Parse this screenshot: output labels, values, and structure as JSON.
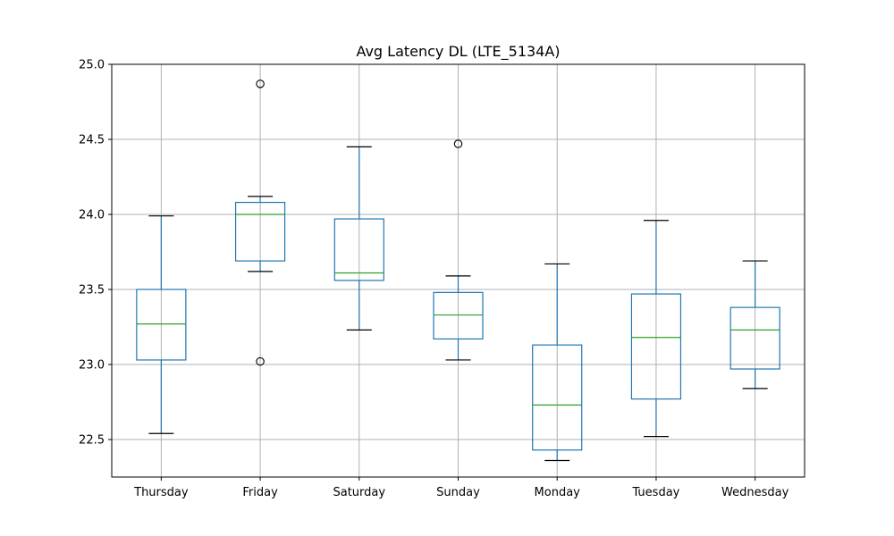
{
  "chart_data": {
    "type": "boxplot",
    "title": "Avg Latency DL (LTE_5134A)",
    "xlabel": "",
    "ylabel": "",
    "categories": [
      "Thursday",
      "Friday",
      "Saturday",
      "Sunday",
      "Monday",
      "Tuesday",
      "Wednesday"
    ],
    "ylim": [
      22.25,
      25.0
    ],
    "yticks": [
      "22.5",
      "23.0",
      "23.5",
      "24.0",
      "24.5",
      "25.0"
    ],
    "ytick_values": [
      22.5,
      23.0,
      23.5,
      24.0,
      24.5,
      25.0
    ],
    "grid": true,
    "legend": "none",
    "boxes": [
      {
        "category": "Thursday",
        "whisker_low": 22.54,
        "q1": 23.03,
        "median": 23.27,
        "q3": 23.5,
        "whisker_high": 23.99,
        "outliers": []
      },
      {
        "category": "Friday",
        "whisker_low": 23.62,
        "q1": 23.69,
        "median": 24.0,
        "q3": 24.08,
        "whisker_high": 24.12,
        "outliers": [
          24.87,
          23.02
        ]
      },
      {
        "category": "Saturday",
        "whisker_low": 23.23,
        "q1": 23.56,
        "median": 23.61,
        "q3": 23.97,
        "whisker_high": 24.45,
        "outliers": []
      },
      {
        "category": "Sunday",
        "whisker_low": 23.03,
        "q1": 23.17,
        "median": 23.33,
        "q3": 23.48,
        "whisker_high": 23.59,
        "outliers": [
          24.47
        ]
      },
      {
        "category": "Monday",
        "whisker_low": 22.36,
        "q1": 22.43,
        "median": 22.73,
        "q3": 23.13,
        "whisker_high": 23.67,
        "outliers": []
      },
      {
        "category": "Tuesday",
        "whisker_low": 22.52,
        "q1": 22.77,
        "median": 23.18,
        "q3": 23.47,
        "whisker_high": 23.96,
        "outliers": []
      },
      {
        "category": "Wednesday",
        "whisker_low": 22.84,
        "q1": 22.97,
        "median": 23.23,
        "q3": 23.38,
        "whisker_high": 23.69,
        "outliers": []
      }
    ],
    "colors": {
      "box": "#1f77b4",
      "median": "#2ca02c",
      "whisker_cap": "#000000",
      "grid": "#b0b0b0",
      "axes": "#000000"
    }
  }
}
